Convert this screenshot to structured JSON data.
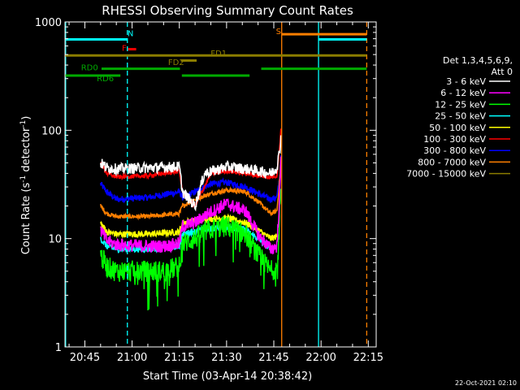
{
  "chart_data": {
    "type": "line",
    "title": "RHESSI Observing Summary Count Rates",
    "xlabel": "Start Time (03-Apr-14 20:38:42)",
    "ylabel_parts": [
      "Count Rate (s",
      "-1",
      " detector",
      "-1",
      ")"
    ],
    "ylabel": "Count Rate (s^-1 detector^-1)",
    "yscale": "log",
    "ylim": [
      1,
      1000
    ],
    "xlim_minutes": [
      38.7,
      137.5
    ],
    "x_ticks": [
      {
        "minute": 45,
        "label": "20:45"
      },
      {
        "minute": 60,
        "label": "21:00"
      },
      {
        "minute": 75,
        "label": "21:15"
      },
      {
        "minute": 90,
        "label": "21:30"
      },
      {
        "minute": 105,
        "label": "21:45"
      },
      {
        "minute": 120,
        "label": "22:00"
      },
      {
        "minute": 135,
        "label": "22:15"
      }
    ],
    "y_ticks": [
      {
        "value": 1,
        "label": "1"
      },
      {
        "value": 10,
        "label": "10"
      },
      {
        "value": 100,
        "label": "100"
      },
      {
        "value": 1000,
        "label": "1000"
      }
    ],
    "legend": {
      "title_lines": [
        "Det 1,3,4,5,6,9,",
        "Att 0"
      ],
      "position": "right"
    },
    "series": [
      {
        "name": "3 - 6 keV",
        "color": "#ffffff",
        "noise": 0.05,
        "points": [
          [
            50,
            50
          ],
          [
            52,
            45
          ],
          [
            55,
            44
          ],
          [
            65,
            45
          ],
          [
            75,
            46
          ],
          [
            76,
            27
          ],
          [
            80,
            20
          ],
          [
            83,
            40
          ],
          [
            90,
            46
          ],
          [
            96,
            44
          ],
          [
            100,
            42
          ],
          [
            104,
            40
          ],
          [
            106,
            45
          ],
          [
            107,
            70
          ],
          [
            107.3,
            90
          ]
        ]
      },
      {
        "name": "6 - 12 keV",
        "color": "#ff00ff",
        "noise": 0.06,
        "points": [
          [
            50,
            12
          ],
          [
            52,
            9.5
          ],
          [
            55,
            8.8
          ],
          [
            65,
            8.5
          ],
          [
            70,
            8.5
          ],
          [
            75,
            9
          ],
          [
            76,
            13
          ],
          [
            80,
            14
          ],
          [
            84,
            17
          ],
          [
            90,
            21
          ],
          [
            96,
            18
          ],
          [
            100,
            11
          ],
          [
            104,
            8
          ],
          [
            106,
            8.5
          ],
          [
            107,
            30
          ],
          [
            107.3,
            60
          ]
        ]
      },
      {
        "name": "12 - 25 keV",
        "color": "#00ff00",
        "noise": 0.1,
        "points": [
          [
            50,
            7
          ],
          [
            52,
            5.5
          ],
          [
            55,
            5
          ],
          [
            65,
            5
          ],
          [
            70,
            5
          ],
          [
            75,
            5.5
          ],
          [
            76,
            9
          ],
          [
            80,
            10
          ],
          [
            84,
            12
          ],
          [
            90,
            13
          ],
          [
            96,
            11
          ],
          [
            100,
            7
          ],
          [
            104,
            5
          ],
          [
            106,
            5.5
          ],
          [
            107,
            20
          ],
          [
            107.3,
            40
          ]
        ]
      },
      {
        "name": "25 - 50 keV",
        "color": "#00ffff",
        "noise": 0.03,
        "points": [
          [
            50,
            10
          ],
          [
            52,
            8.5
          ],
          [
            55,
            8
          ],
          [
            65,
            8
          ],
          [
            75,
            8.5
          ],
          [
            76,
            11
          ],
          [
            82,
            12
          ],
          [
            90,
            13
          ],
          [
            96,
            12
          ],
          [
            100,
            10
          ],
          [
            104,
            8
          ],
          [
            106,
            8.5
          ]
        ]
      },
      {
        "name": "50 - 100 keV",
        "color": "#ffff00",
        "noise": 0.03,
        "points": [
          [
            50,
            14
          ],
          [
            52,
            11.5
          ],
          [
            55,
            11
          ],
          [
            65,
            11
          ],
          [
            75,
            11.5
          ],
          [
            76,
            14
          ],
          [
            82,
            15
          ],
          [
            90,
            15.5
          ],
          [
            96,
            14
          ],
          [
            100,
            12
          ],
          [
            104,
            10
          ],
          [
            106,
            10.5
          ]
        ]
      },
      {
        "name": "100 - 300 keV",
        "color": "#ff0000",
        "noise": 0.02,
        "points": [
          [
            50,
            50
          ],
          [
            52,
            40
          ],
          [
            55,
            37
          ],
          [
            65,
            38
          ],
          [
            75,
            42
          ],
          [
            76,
            27
          ],
          [
            80,
            20
          ],
          [
            85,
            40
          ],
          [
            90,
            42
          ],
          [
            96,
            40
          ],
          [
            100,
            38
          ],
          [
            104,
            37
          ],
          [
            106,
            38
          ],
          [
            107,
            80
          ],
          [
            107.3,
            110
          ]
        ]
      },
      {
        "name": "300 - 800 keV",
        "color": "#0000ff",
        "noise": 0.03,
        "points": [
          [
            50,
            32
          ],
          [
            52,
            27
          ],
          [
            55,
            23
          ],
          [
            65,
            24
          ],
          [
            72,
            26
          ],
          [
            75,
            27
          ],
          [
            76,
            24
          ],
          [
            80,
            27
          ],
          [
            85,
            32
          ],
          [
            90,
            33
          ],
          [
            96,
            30
          ],
          [
            100,
            26
          ],
          [
            104,
            23
          ],
          [
            106,
            24
          ],
          [
            107,
            40
          ],
          [
            107.3,
            70
          ]
        ]
      },
      {
        "name": "800 - 7000 keV",
        "color": "#ff7f00",
        "noise": 0.02,
        "points": [
          [
            50,
            20
          ],
          [
            52,
            17
          ],
          [
            55,
            16
          ],
          [
            65,
            16
          ],
          [
            75,
            17
          ],
          [
            76,
            20
          ],
          [
            80,
            23
          ],
          [
            85,
            26
          ],
          [
            90,
            28
          ],
          [
            96,
            27
          ],
          [
            100,
            22
          ],
          [
            104,
            17
          ],
          [
            106,
            18
          ],
          [
            107,
            40
          ],
          [
            107.3,
            60
          ]
        ]
      },
      {
        "name": "7000 - 15000 keV",
        "color": "#8b7d00",
        "noise": 0,
        "points": []
      }
    ],
    "flag_bars": [
      {
        "label": "N",
        "label_color": "#00ffff",
        "color": "#00ffff",
        "y": 690,
        "label_y": 790,
        "label_minute": 59.5,
        "segments": [
          [
            38.7,
            58.5
          ],
          [
            119.2,
            134.5
          ]
        ]
      },
      {
        "label": "S",
        "label_color": "#ff7f00",
        "color": "#ff7f00",
        "y": 770,
        "label_y": 830,
        "label_minute": 106.5,
        "segments": [
          [
            107.5,
            134.5
          ]
        ]
      },
      {
        "label": "F",
        "label_color": "#ff0000",
        "color": "#ff0000",
        "y": 560,
        "label_y": 580,
        "label_minute": 57.5,
        "segments": [
          [
            58.7,
            61.3
          ]
        ]
      },
      {
        "label": "FD1",
        "label_color": "#8b7d00",
        "color": "#8b7d00",
        "y": 490,
        "label_y": 520,
        "label_minute": 87.5,
        "segments": [
          [
            38.7,
            134.5
          ]
        ]
      },
      {
        "label": "FD2",
        "label_color": "#8b7d00",
        "color": "#8b7d00",
        "y": 440,
        "label_y": 430,
        "label_minute": 74,
        "segments": [
          [
            75.5,
            80.5
          ]
        ]
      },
      {
        "label": "RD0",
        "label_color": "#00aa00",
        "color": "#00aa00",
        "y": 370,
        "label_y": 385,
        "label_minute": 46.5,
        "segments": [
          [
            50.3,
            75.2
          ],
          [
            101,
            134.5
          ]
        ]
      },
      {
        "label": "RD6",
        "label_color": "#00aa00",
        "color": "#00aa00",
        "y": 320,
        "label_y": 305,
        "label_minute": 51.5,
        "segments": [
          [
            38.7,
            56.3
          ],
          [
            75.8,
            97.3
          ]
        ]
      }
    ],
    "vertical_markers": [
      {
        "minute": 38.9,
        "color": "#00ffff",
        "style": "solid"
      },
      {
        "minute": 58.5,
        "color": "#00ffff",
        "style": "dashed"
      },
      {
        "minute": 107.5,
        "color": "#ff7f00",
        "style": "solid"
      },
      {
        "minute": 119.2,
        "color": "#00ffff",
        "style": "solid"
      },
      {
        "minute": 134.5,
        "color": "#ff7f00",
        "style": "dashed"
      }
    ],
    "gaps_minutes": [
      [
        56.3,
        50.3
      ]
    ]
  },
  "timestamp": "22-Oct-2021 02:10"
}
